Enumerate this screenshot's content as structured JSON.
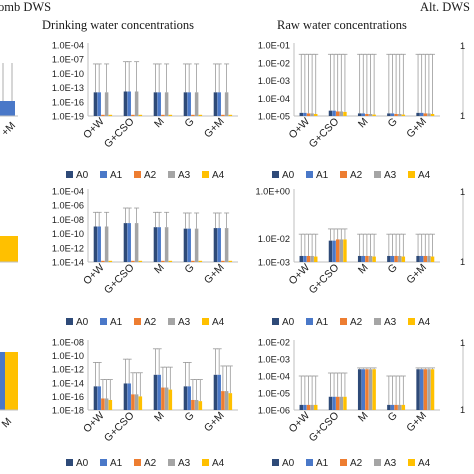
{
  "headers": {
    "left_cut": "omb DWS",
    "drinking": "Drinking water concentrations",
    "raw": "Raw water concentrations",
    "right_cut": "Alt. DWS"
  },
  "legend": [
    {
      "label": "A0",
      "color": "#2e4a78"
    },
    {
      "label": "A1",
      "color": "#4a78c8"
    },
    {
      "label": "A2",
      "color": "#ed7d31"
    },
    {
      "label": "A3",
      "color": "#a5a5a5"
    },
    {
      "label": "A4",
      "color": "#ffc000"
    }
  ],
  "colors": {
    "error_bar": "#9a9a9a",
    "axis": "#bfbfbf",
    "tick_text": "#222222"
  },
  "categories": [
    "O+W",
    "G+CSO",
    "M",
    "G",
    "G+M"
  ],
  "chart_data": [
    {
      "id": "drinking-row1",
      "type": "bar",
      "ylog": true,
      "yticks": [
        "1.0E-19",
        "1.0E-16",
        "1.0E-13",
        "1.0E-10",
        "1.0E-07",
        "1.0E-04"
      ],
      "ylim": [
        -19,
        -4
      ],
      "categories": [
        "O+W",
        "G+CSO",
        "M",
        "G",
        "G+M"
      ],
      "series": [
        {
          "name": "A0",
          "values": [
            1e-14,
            1.5e-14,
            1e-14,
            1e-14,
            1e-14
          ],
          "err_hi": [
            1e-08,
            3e-08,
            1e-08,
            1e-08,
            1e-08
          ]
        },
        {
          "name": "A1",
          "values": [
            1e-14,
            1.5e-14,
            1e-14,
            1e-14,
            1e-14
          ],
          "err_hi": [
            1e-08,
            3e-08,
            1e-08,
            1e-08,
            1e-08
          ]
        },
        {
          "name": "A2",
          "values": [
            1.2e-19,
            1.2e-19,
            1.2e-19,
            1.2e-19,
            1.2e-19
          ],
          "err_hi": [
            null,
            null,
            null,
            null,
            null
          ]
        },
        {
          "name": "A3",
          "values": [
            1e-14,
            1.5e-14,
            1e-14,
            1e-14,
            1e-14
          ],
          "err_hi": [
            1e-08,
            3e-08,
            1e-08,
            1e-08,
            1e-08
          ]
        },
        {
          "name": "A4",
          "values": [
            1.2e-19,
            1.2e-19,
            1.2e-19,
            1.2e-19,
            1.2e-19
          ],
          "err_hi": [
            null,
            null,
            null,
            null,
            null
          ]
        }
      ]
    },
    {
      "id": "raw-row1",
      "type": "bar",
      "ylog": true,
      "yticks": [
        "1.0E-05",
        "1.0E-04",
        "1.0E-03",
        "1.0E-02",
        "1.0E-01"
      ],
      "ylim": [
        -5,
        -1
      ],
      "categories": [
        "O+W",
        "G+CSO",
        "M",
        "G",
        "G+M"
      ],
      "series": [
        {
          "name": "A0",
          "values": [
            1.5e-05,
            2e-05,
            1.4e-05,
            1.4e-05,
            1.5e-05
          ],
          "err_hi": [
            0.03,
            0.03,
            0.03,
            0.03,
            0.03
          ]
        },
        {
          "name": "A1",
          "values": [
            1.5e-05,
            2e-05,
            1.4e-05,
            1.4e-05,
            1.5e-05
          ],
          "err_hi": [
            0.03,
            0.03,
            0.03,
            0.03,
            0.03
          ]
        },
        {
          "name": "A2",
          "values": [
            1.4e-05,
            1.8e-05,
            1.3e-05,
            1.3e-05,
            1.4e-05
          ],
          "err_hi": [
            0.03,
            0.03,
            0.03,
            0.03,
            0.03
          ]
        },
        {
          "name": "A3",
          "values": [
            1.4e-05,
            1.8e-05,
            1.3e-05,
            1.3e-05,
            1.4e-05
          ],
          "err_hi": [
            0.03,
            0.03,
            0.03,
            0.03,
            0.03
          ]
        },
        {
          "name": "A4",
          "values": [
            1.3e-05,
            1.7e-05,
            1.2e-05,
            1.2e-05,
            1.3e-05
          ],
          "err_hi": [
            0.03,
            0.03,
            0.03,
            0.03,
            0.03
          ]
        }
      ]
    },
    {
      "id": "drinking-row2",
      "type": "bar",
      "ylog": true,
      "yticks": [
        "1.0E-14",
        "1.0E-12",
        "1.0E-10",
        "1.0E-08",
        "1.0E-06",
        "1.0E-04"
      ],
      "ylim": [
        -14,
        -4
      ],
      "categories": [
        "O+W",
        "G+CSO",
        "M",
        "G",
        "G+M"
      ],
      "series": [
        {
          "name": "A0",
          "values": [
            1e-09,
            3e-09,
            8e-10,
            5e-10,
            6e-10
          ],
          "err_hi": [
            1e-07,
            4e-07,
            1e-07,
            8e-08,
            8e-08
          ]
        },
        {
          "name": "A1",
          "values": [
            1e-09,
            3e-09,
            8e-10,
            5e-10,
            6e-10
          ],
          "err_hi": [
            1e-07,
            4e-07,
            1e-07,
            8e-08,
            8e-08
          ]
        },
        {
          "name": "A2",
          "values": [
            1.3e-14,
            1.3e-14,
            1.3e-14,
            1.3e-14,
            1.3e-14
          ],
          "err_hi": [
            null,
            null,
            null,
            null,
            null
          ]
        },
        {
          "name": "A3",
          "values": [
            1e-09,
            3e-09,
            8e-10,
            5e-10,
            6e-10
          ],
          "err_hi": [
            1e-07,
            4e-07,
            1e-07,
            8e-08,
            8e-08
          ]
        },
        {
          "name": "A4",
          "values": [
            1.3e-14,
            1.3e-14,
            1.3e-14,
            1.3e-14,
            1.3e-14
          ],
          "err_hi": [
            null,
            null,
            null,
            null,
            null
          ]
        }
      ]
    },
    {
      "id": "raw-row2",
      "type": "bar",
      "ylog": true,
      "yticks": [
        "1.0E-03",
        "1.0E-02",
        "1.0E+00"
      ],
      "ylim": [
        -3,
        0
      ],
      "categories": [
        "O+W",
        "G+CSO",
        "M",
        "G",
        "G+M"
      ],
      "series": [
        {
          "name": "A0",
          "values": [
            0.0018,
            0.008,
            0.0018,
            0.0018,
            0.0018
          ],
          "err_hi": [
            0.015,
            0.025,
            0.015,
            0.015,
            0.015
          ]
        },
        {
          "name": "A1",
          "values": [
            0.0018,
            0.008,
            0.0018,
            0.0018,
            0.0018
          ],
          "err_hi": [
            0.015,
            0.025,
            0.015,
            0.015,
            0.015
          ]
        },
        {
          "name": "A2",
          "values": [
            0.0018,
            0.009,
            0.0018,
            0.0018,
            0.0018
          ],
          "err_hi": [
            0.015,
            0.025,
            0.015,
            0.015,
            0.015
          ]
        },
        {
          "name": "A3",
          "values": [
            0.0018,
            0.009,
            0.0018,
            0.0018,
            0.0018
          ],
          "err_hi": [
            0.015,
            0.025,
            0.015,
            0.015,
            0.015
          ]
        },
        {
          "name": "A4",
          "values": [
            0.0017,
            0.009,
            0.0017,
            0.0017,
            0.0017
          ],
          "err_hi": [
            0.015,
            0.025,
            0.015,
            0.015,
            0.015
          ]
        }
      ]
    },
    {
      "id": "drinking-row3",
      "type": "bar",
      "ylog": true,
      "yticks": [
        "1.0E-18",
        "1.0E-16",
        "1.0E-14",
        "1.0E-12",
        "1.0E-10",
        "1.0E-08"
      ],
      "ylim": [
        -18,
        -8
      ],
      "categories": [
        "O+W",
        "G+CSO",
        "M",
        "G",
        "G+M"
      ],
      "series": [
        {
          "name": "A0",
          "values": [
            3e-15,
            8e-15,
            1.5e-13,
            3e-15,
            1.5e-13
          ],
          "err_hi": [
            1e-11,
            3e-11,
            1e-09,
            1e-11,
            1e-09
          ]
        },
        {
          "name": "A1",
          "values": [
            3e-15,
            8e-15,
            1.5e-13,
            3e-15,
            1.5e-13
          ],
          "err_hi": [
            1e-11,
            3e-11,
            1e-09,
            1e-11,
            1e-09
          ]
        },
        {
          "name": "A2",
          "values": [
            5e-17,
            2e-16,
            2e-15,
            3e-17,
            6e-16
          ],
          "err_hi": [
            3e-14,
            3e-13,
            2e-12,
            3e-14,
            3e-12
          ]
        },
        {
          "name": "A3",
          "values": [
            5e-17,
            2e-16,
            2e-15,
            3e-17,
            6e-16
          ],
          "err_hi": [
            3e-14,
            3e-13,
            2e-12,
            3e-14,
            3e-12
          ]
        },
        {
          "name": "A4",
          "values": [
            3e-17,
            1e-16,
            1e-15,
            2e-17,
            3e-16
          ],
          "err_hi": [
            3e-14,
            3e-13,
            2e-12,
            3e-14,
            3e-12
          ]
        }
      ]
    },
    {
      "id": "raw-row3",
      "type": "bar",
      "ylog": true,
      "yticks": [
        "1.0E-06",
        "1.0E-05",
        "1.0E-04",
        "1.0E-03",
        "1.0E-02"
      ],
      "ylim": [
        -6,
        -2
      ],
      "categories": [
        "O+W",
        "G+CSO",
        "M",
        "G",
        "G+M"
      ],
      "series": [
        {
          "name": "A0",
          "values": [
            2e-06,
            6e-06,
            0.00025,
            2e-06,
            0.00025
          ],
          "err_hi": [
            0.0001,
            0.00015,
            0.0003,
            0.0001,
            0.0003
          ]
        },
        {
          "name": "A1",
          "values": [
            2e-06,
            6e-06,
            0.00025,
            2e-06,
            0.00025
          ],
          "err_hi": [
            0.0001,
            0.00015,
            0.0003,
            0.0001,
            0.0003
          ]
        },
        {
          "name": "A2",
          "values": [
            2e-06,
            6e-06,
            0.00025,
            2e-06,
            0.00025
          ],
          "err_hi": [
            0.0001,
            0.00015,
            0.0003,
            0.0001,
            0.0003
          ]
        },
        {
          "name": "A3",
          "values": [
            2e-06,
            6e-06,
            0.00025,
            2e-06,
            0.00025
          ],
          "err_hi": [
            0.0001,
            0.00015,
            0.0003,
            0.0001,
            0.0003
          ]
        },
        {
          "name": "A4",
          "values": [
            2e-06,
            6e-06,
            0.00025,
            2e-06,
            0.00025
          ],
          "err_hi": [
            0.0001,
            0.00015,
            0.0003,
            0.0001,
            0.0003
          ]
        }
      ]
    }
  ],
  "left_partial": {
    "tick_labels": [
      "+M",
      "M"
    ]
  }
}
